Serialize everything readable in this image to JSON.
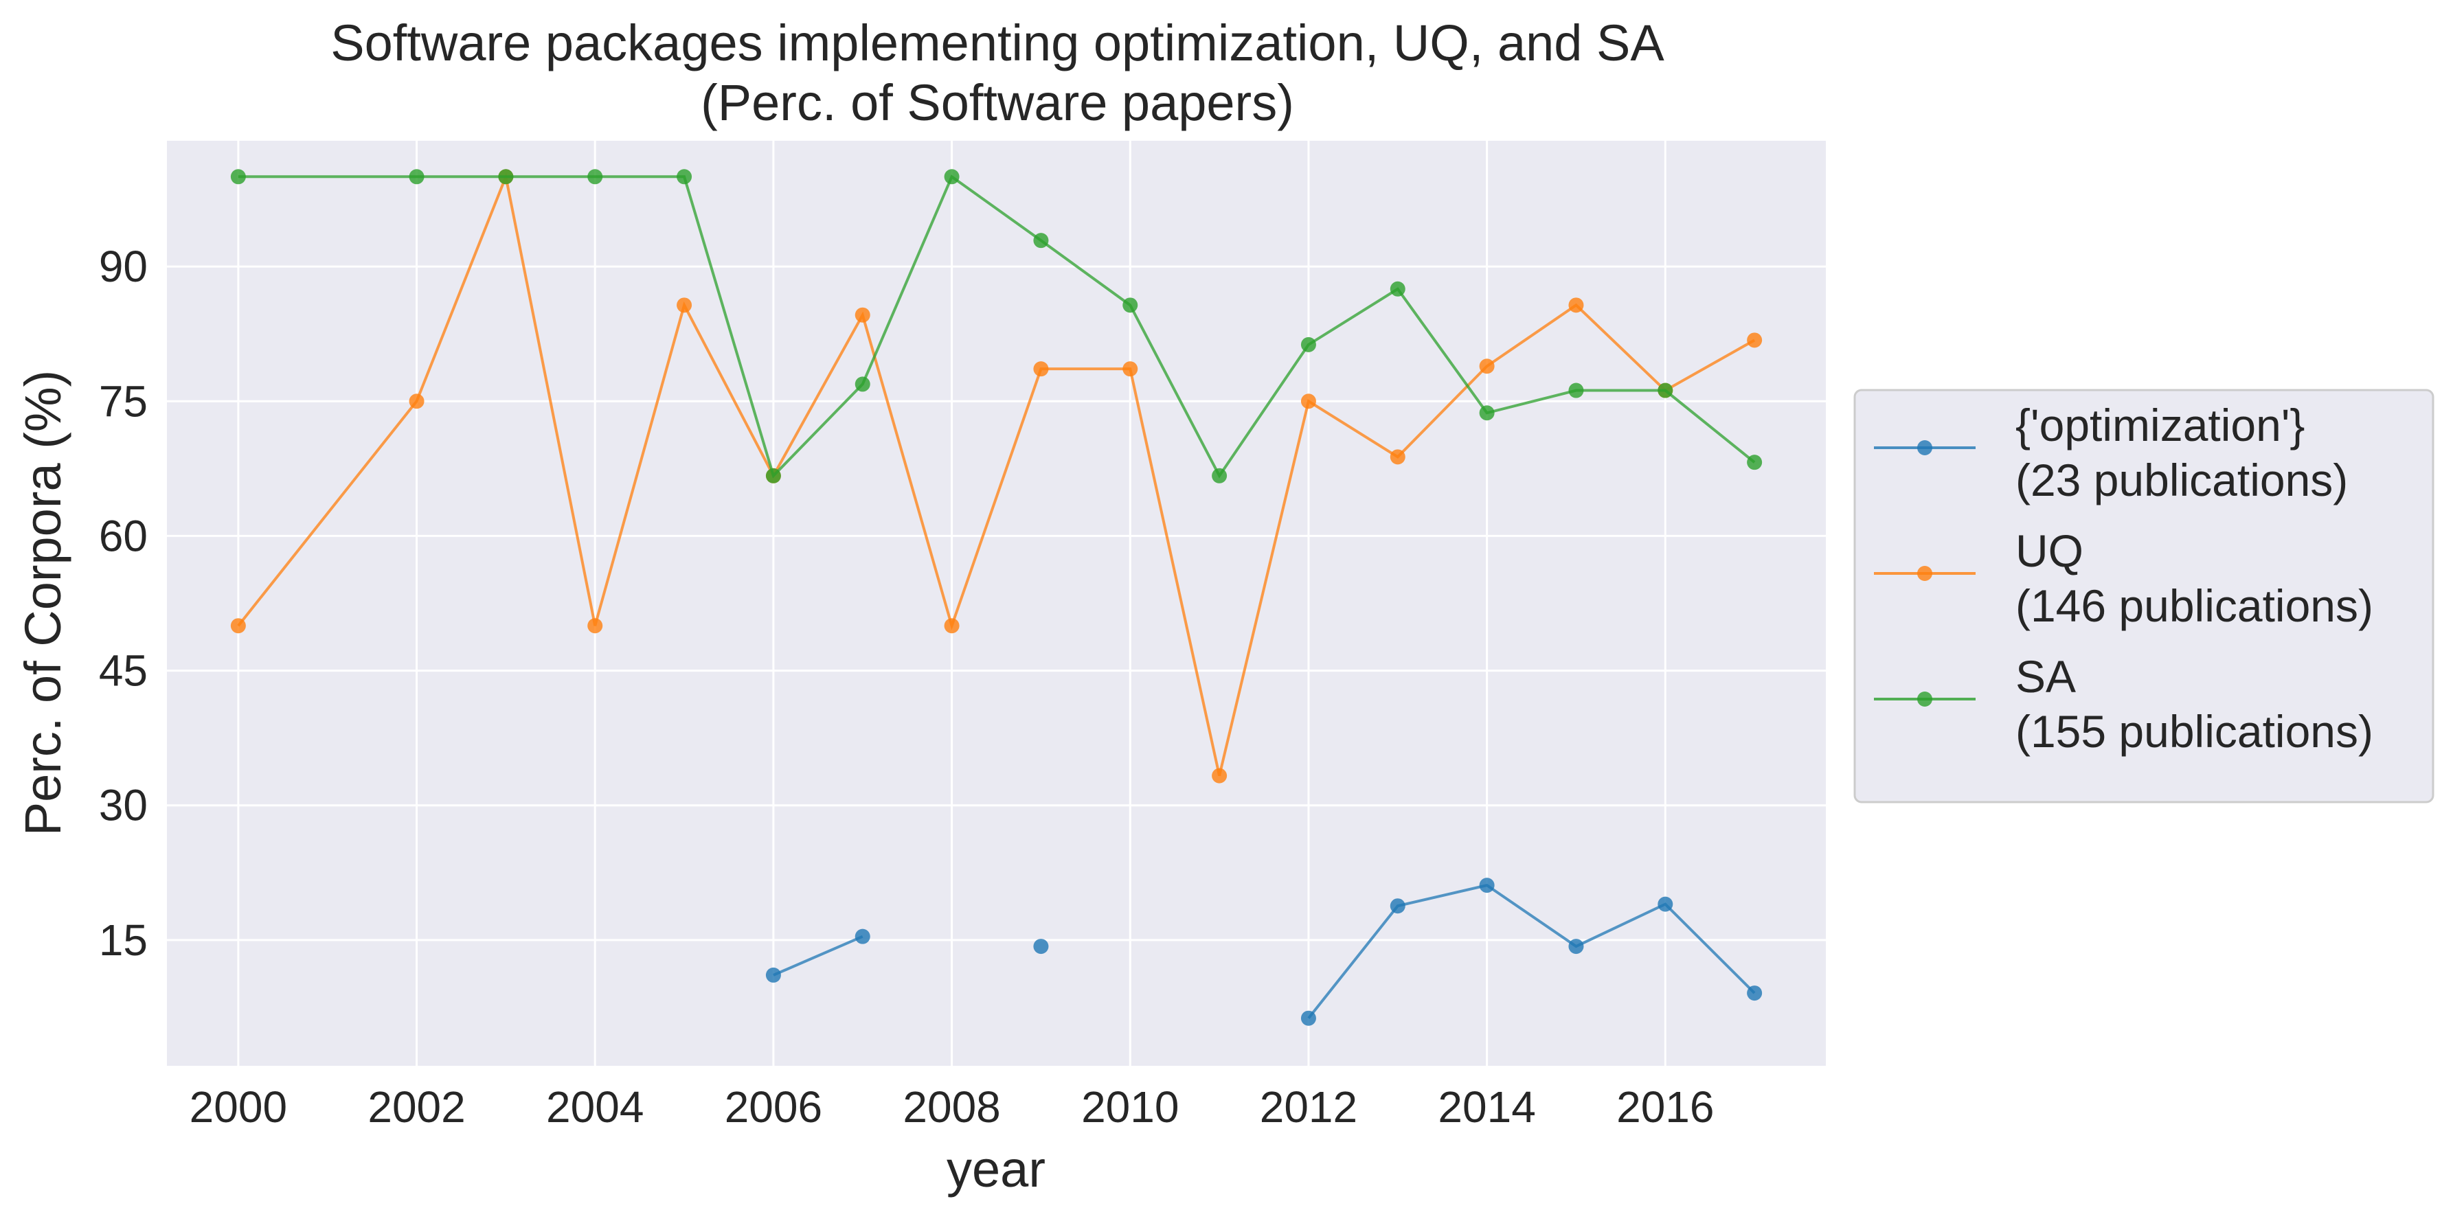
{
  "chart_data": {
    "type": "line",
    "title": "Software packages implementing optimization, UQ, and SA",
    "subtitle": "(Perc. of Software papers)",
    "xlabel": "year",
    "ylabel": "Perc. of Corpora (%)",
    "xlim": [
      1999.2,
      2017.8
    ],
    "ylim": [
      1.0,
      104.0
    ],
    "x_ticks": [
      2000,
      2002,
      2004,
      2006,
      2008,
      2010,
      2012,
      2014,
      2016
    ],
    "y_ticks": [
      15,
      30,
      45,
      60,
      75,
      90
    ],
    "grid": true,
    "legend_position": "outside-right",
    "series": [
      {
        "name": "{'optimization'}",
        "legend_note": "(23 publications)",
        "color": "#1f77b4",
        "points": [
          [
            2006,
            11.1
          ],
          [
            2007,
            15.4
          ],
          [
            2008,
            null
          ],
          [
            2009,
            14.3
          ],
          [
            2010,
            null
          ],
          [
            2011,
            null
          ],
          [
            2012,
            6.3
          ],
          [
            2013,
            18.8
          ],
          [
            2014,
            21.1
          ],
          [
            2015,
            14.3
          ],
          [
            2016,
            19.0
          ],
          [
            2017,
            9.1
          ]
        ]
      },
      {
        "name": "UQ",
        "legend_note": "(146 publications)",
        "color": "#ff7f0e",
        "points": [
          [
            2000,
            50.0
          ],
          [
            2002,
            75.0
          ],
          [
            2003,
            100.0
          ],
          [
            2004,
            50.0
          ],
          [
            2005,
            85.7
          ],
          [
            2006,
            66.7
          ],
          [
            2007,
            84.6
          ],
          [
            2008,
            50.0
          ],
          [
            2009,
            78.6
          ],
          [
            2010,
            78.6
          ],
          [
            2011,
            33.3
          ],
          [
            2012,
            75.0
          ],
          [
            2013,
            68.8
          ],
          [
            2014,
            78.9
          ],
          [
            2015,
            85.7
          ],
          [
            2016,
            76.2
          ],
          [
            2017,
            81.8
          ]
        ]
      },
      {
        "name": "SA",
        "legend_note": "(155 publications)",
        "color": "#2ca02c",
        "points": [
          [
            2000,
            100.0
          ],
          [
            2002,
            100.0
          ],
          [
            2003,
            100.0
          ],
          [
            2004,
            100.0
          ],
          [
            2005,
            100.0
          ],
          [
            2006,
            66.7
          ],
          [
            2007,
            76.9
          ],
          [
            2008,
            100.0
          ],
          [
            2009,
            92.9
          ],
          [
            2010,
            85.7
          ],
          [
            2011,
            66.7
          ],
          [
            2012,
            81.3
          ],
          [
            2013,
            87.5
          ],
          [
            2014,
            73.7
          ],
          [
            2015,
            76.2
          ],
          [
            2016,
            76.2
          ],
          [
            2017,
            68.2
          ]
        ]
      }
    ]
  }
}
